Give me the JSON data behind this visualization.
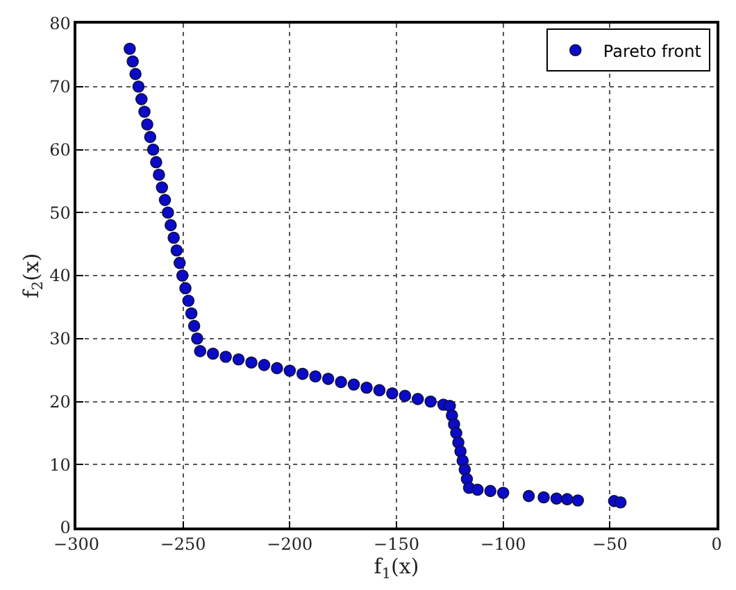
{
  "chart_data": {
    "type": "scatter",
    "xlabel": "f$_{1}$(x)",
    "ylabel": "f$_{2}$(x)",
    "xlim": [
      -300,
      0
    ],
    "xticks": [
      -300,
      -250,
      -200,
      -150,
      -100,
      -50,
      0
    ],
    "ylim": [
      0,
      80
    ],
    "yticks": [
      0,
      10,
      20,
      30,
      40,
      50,
      60,
      70,
      80
    ],
    "grid": true,
    "legend": "top right",
    "marker": "circle",
    "series": [
      {
        "name": "Pareto front",
        "color": "#0a0ac8",
        "x": [
          -275,
          -273.6,
          -272.3,
          -270.9,
          -269.5,
          -268.1,
          -266.8,
          -265.4,
          -264,
          -262.6,
          -261.3,
          -259.9,
          -258.5,
          -257.1,
          -255.8,
          -254.4,
          -253,
          -251.6,
          -250.3,
          -248.9,
          -247.5,
          -246.1,
          -244.8,
          -243.4,
          -242,
          -236,
          -230,
          -224,
          -218,
          -212,
          -206,
          -200,
          -194,
          -188,
          -182,
          -176,
          -170,
          -164,
          -158,
          -152,
          -146,
          -140,
          -134,
          -128,
          -125,
          -124,
          -123,
          -122,
          -121,
          -120,
          -119,
          -118,
          -117,
          -116,
          -112,
          -106,
          -100,
          -88,
          -81,
          -75,
          -70,
          -65,
          -48,
          -45
        ],
        "values": [
          76,
          74,
          72,
          70,
          68,
          66,
          64,
          62,
          60,
          58,
          56,
          54,
          52,
          50,
          48,
          46,
          44,
          42,
          40,
          38,
          36,
          34,
          32,
          30,
          28,
          27.6,
          27.1,
          26.7,
          26.2,
          25.8,
          25.3,
          24.9,
          24.4,
          24.0,
          23.6,
          23.1,
          22.7,
          22.2,
          21.8,
          21.3,
          20.9,
          20.4,
          20.0,
          19.5,
          19.3,
          17.8,
          16.4,
          15.0,
          13.5,
          12.1,
          10.6,
          9.2,
          7.7,
          6.3,
          6.0,
          5.8,
          5.5,
          5.0,
          4.8,
          4.6,
          4.5,
          4.3,
          4.2,
          4.0
        ]
      }
    ]
  }
}
